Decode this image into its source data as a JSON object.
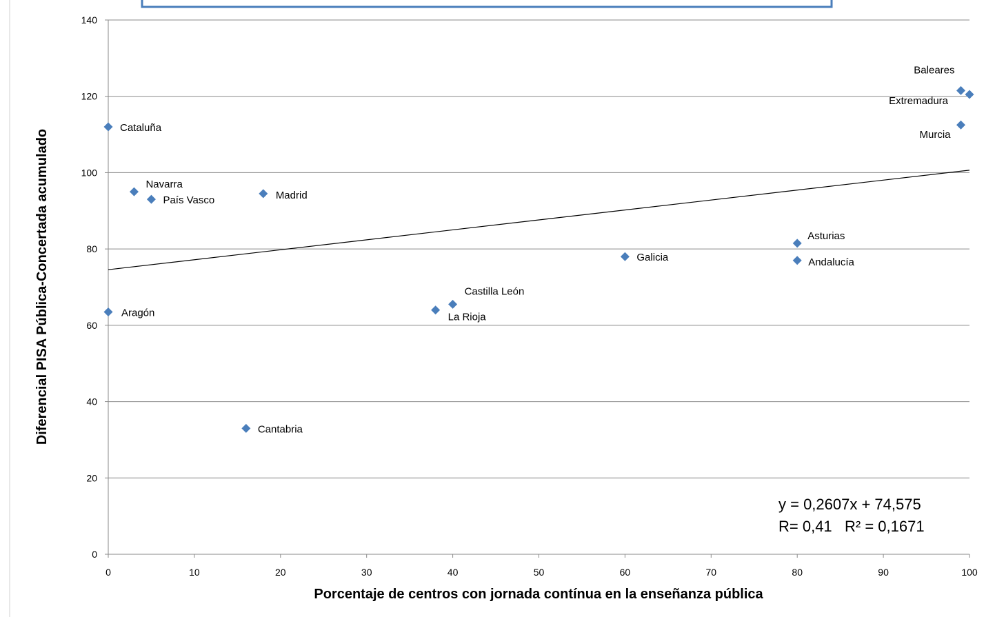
{
  "chart_data": {
    "type": "scatter",
    "xlabel": "Porcentaje de centros con jornada contínua en la enseñanza pública",
    "ylabel": "Diferencial PISA Pública-Concertada acumulado",
    "xlim": [
      0,
      100
    ],
    "ylim": [
      0,
      140
    ],
    "xticks": [
      "0",
      "10",
      "20",
      "30",
      "40",
      "50",
      "60",
      "70",
      "80",
      "90",
      "100"
    ],
    "yticks": [
      "0",
      "20",
      "40",
      "60",
      "80",
      "100",
      "120",
      "140"
    ],
    "grid": "horizontal",
    "marker_color": "#4a7ebb",
    "points": [
      {
        "name": "Cataluña",
        "x": 0,
        "y": 112
      },
      {
        "name": "Aragón",
        "x": 0,
        "y": 63.5
      },
      {
        "name": "Navarra",
        "x": 3,
        "y": 95
      },
      {
        "name": "País Vasco",
        "x": 5,
        "y": 93
      },
      {
        "name": "Cantabria",
        "x": 16,
        "y": 33
      },
      {
        "name": "Madrid",
        "x": 18,
        "y": 94.5
      },
      {
        "name": "La Rioja",
        "x": 38,
        "y": 64
      },
      {
        "name": "Castilla León",
        "x": 40,
        "y": 65.5
      },
      {
        "name": "Galicia",
        "x": 60,
        "y": 78
      },
      {
        "name": "Asturias",
        "x": 80,
        "y": 81.5
      },
      {
        "name": "Andalucía",
        "x": 80,
        "y": 77
      },
      {
        "name": "Baleares",
        "x": 99,
        "y": 121.5
      },
      {
        "name": "Extremadura",
        "x": 100,
        "y": 120.5
      },
      {
        "name": "Murcia",
        "x": 99,
        "y": 112.5
      }
    ],
    "trendline": {
      "slope": 0.2607,
      "intercept": 74.575
    },
    "annotations": {
      "equation": "y = 0,2607x + 74,575",
      "r_text": "R= 0,41   R² = 0,1671"
    }
  }
}
